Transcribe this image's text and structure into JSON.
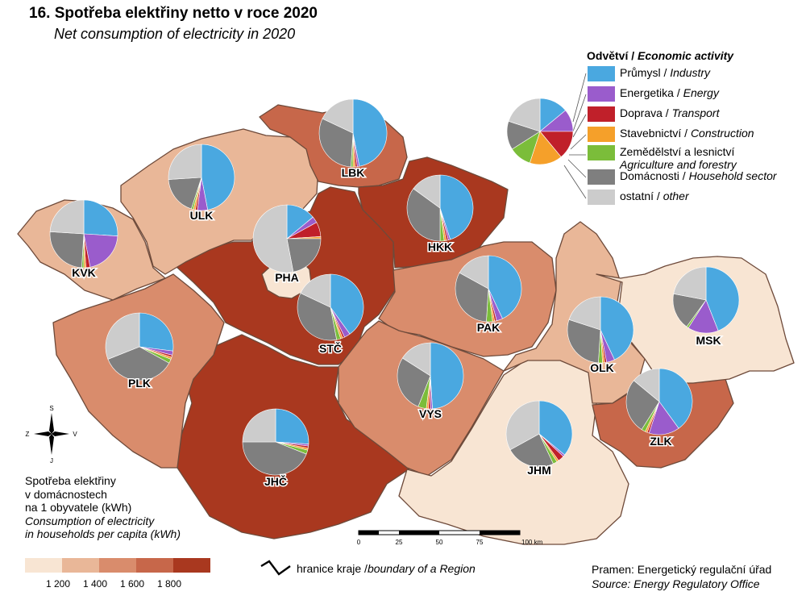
{
  "header": {
    "title": "16. Spotřeba elektřiny netto v roce 2020",
    "subtitle": "Net consumption of electricity in 2020"
  },
  "pie_legend": {
    "title_cz": "Odvětví / ",
    "title_en": "Economic activity",
    "items": [
      {
        "cz": "Průmysl / ",
        "en": "Industry",
        "color": "#4aa8e0"
      },
      {
        "cz": "Energetika / ",
        "en": "Energy",
        "color": "#9a5ccc"
      },
      {
        "cz": "Doprava / ",
        "en": "Transport",
        "color": "#c0202a"
      },
      {
        "cz": "Stavebnictví / ",
        "en": "Construction",
        "color": "#f5a02a"
      },
      {
        "cz": "Zemědělství a lesnictví",
        "en": "Agriculture and forestry",
        "color": "#7bbd3a"
      },
      {
        "cz": "Domácnosti / ",
        "en": "Household sector",
        "color": "#7f7f7f"
      },
      {
        "cz": "ostatní / ",
        "en": "other",
        "color": "#cccccc"
      }
    ]
  },
  "consumption_legend": {
    "line1": "Spotřeba elektřiny",
    "line2": "v domácnostech",
    "line3": "na 1 obyvatele (kWh)",
    "line4": "Consumption of electricity",
    "line5": "in households per capita (kWh)",
    "classes": [
      "#f8e5d3",
      "#e9b798",
      "#d98c6c",
      "#c7674a",
      "#a9381f"
    ],
    "breaks": [
      "1 200",
      "1 400",
      "1 600",
      "1 800"
    ]
  },
  "boundary_legend": {
    "cz": "hranice kraje / ",
    "en": "boundary of a Region"
  },
  "scale_bar": {
    "labels": [
      "0",
      "25",
      "50",
      "75",
      "100 km"
    ]
  },
  "compass": {
    "n": "S",
    "s": "J",
    "w": "Z",
    "e": "V"
  },
  "source": {
    "cz": "Pramen: Energetický regulační úřad",
    "en": "Source: Energy Regulatory Office"
  },
  "regions": [
    {
      "code": "PHA",
      "class": 0,
      "shares": [
        14,
        3,
        7,
        1,
        0,
        22,
        53
      ]
    },
    {
      "code": "STČ",
      "class": 4,
      "shares": [
        40,
        3,
        1,
        1,
        2,
        35,
        18
      ]
    },
    {
      "code": "JHČ",
      "class": 4,
      "shares": [
        26,
        1,
        1,
        1,
        2,
        44,
        25
      ]
    },
    {
      "code": "PLK",
      "class": 2,
      "shares": [
        27,
        2,
        1,
        1,
        2,
        36,
        31
      ]
    },
    {
      "code": "KVK",
      "class": 1,
      "shares": [
        26,
        21,
        2,
        1,
        1,
        25,
        24
      ]
    },
    {
      "code": "ULK",
      "class": 1,
      "shares": [
        47,
        5,
        1,
        1,
        1,
        19,
        26
      ]
    },
    {
      "code": "LBK",
      "class": 3,
      "shares": [
        47,
        1,
        1,
        1,
        1,
        31,
        18
      ]
    },
    {
      "code": "HKK",
      "class": 4,
      "shares": [
        45,
        1,
        1,
        1,
        2,
        35,
        15
      ]
    },
    {
      "code": "PAK",
      "class": 2,
      "shares": [
        43,
        3,
        1,
        1,
        3,
        32,
        17
      ]
    },
    {
      "code": "VYS",
      "class": 2,
      "shares": [
        49,
        1,
        1,
        1,
        4,
        28,
        16
      ]
    },
    {
      "code": "JHM",
      "class": 0,
      "shares": [
        36,
        1,
        3,
        1,
        2,
        24,
        33
      ]
    },
    {
      "code": "OLK",
      "class": 1,
      "shares": [
        43,
        4,
        1,
        1,
        2,
        29,
        20
      ]
    },
    {
      "code": "ZLK",
      "class": 3,
      "shares": [
        40,
        15,
        1,
        1,
        2,
        27,
        14
      ]
    },
    {
      "code": "MSK",
      "class": 0,
      "shares": [
        44,
        15,
        0,
        0,
        1,
        18,
        22
      ]
    }
  ],
  "legend_pie": {
    "shares": [
      14,
      11,
      14,
      16,
      11,
      14,
      20
    ]
  }
}
